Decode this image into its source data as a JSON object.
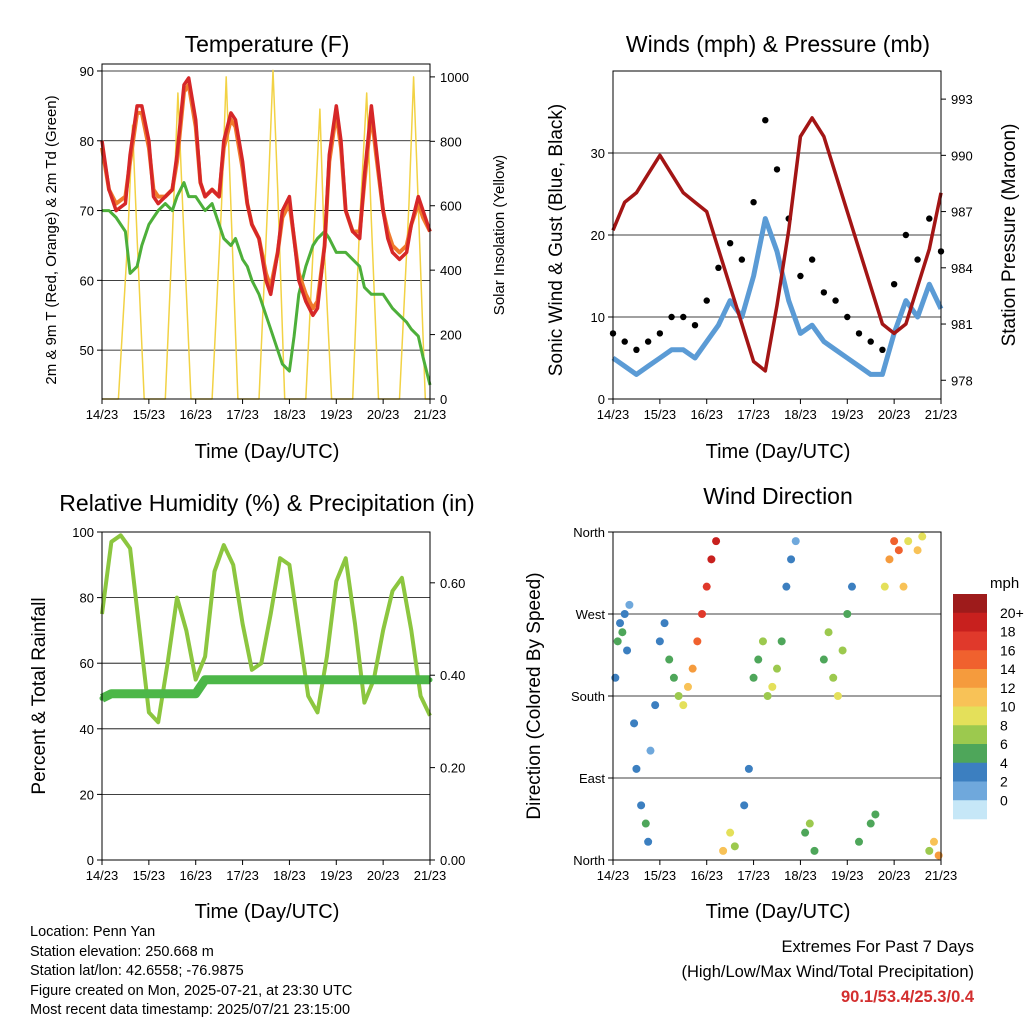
{
  "colors": {
    "t2m": "#d62728",
    "t9m": "#f07a2c",
    "td": "#4daf3a",
    "solar": "#f2d244",
    "wind": "#5b9bd5",
    "gust": "#000000",
    "pressure": "#a31515",
    "rh": "#8cc63f",
    "precip": "#4cb748",
    "extremes": "#d32f2f"
  },
  "x_ticks": [
    "14/23",
    "15/23",
    "16/23",
    "17/23",
    "18/23",
    "19/23",
    "20/23",
    "21/23"
  ],
  "panels": {
    "temperature": {
      "title": "Temperature (F)",
      "xlabel": "Time (Day/UTC)",
      "ylabel_left": "2m & 9m T (Red, Orange) & 2m Td (Green)",
      "ylabel_right": "Solar Insolation (Yellow)",
      "yticks_left": [
        "50",
        "60",
        "70",
        "80",
        "90"
      ],
      "yticks_right": [
        "0",
        "200",
        "400",
        "600",
        "800",
        "1000"
      ]
    },
    "winds": {
      "title": "Winds (mph) & Pressure (mb)",
      "xlabel": "Time (Day/UTC)",
      "ylabel_left": "Sonic Wind & Gust (Blue, Black)",
      "ylabel_right": "Station Pressure (Maroon)",
      "yticks_left": [
        "0",
        "10",
        "20",
        "30"
      ],
      "yticks_right": [
        "978",
        "981",
        "984",
        "987",
        "990",
        "993"
      ]
    },
    "humidity": {
      "title": "Relative Humidity (%) & Precipitation (in)",
      "xlabel": "Time (Day/UTC)",
      "ylabel_left": "Percent & Total Rainfall",
      "yticks_left": [
        "0",
        "20",
        "40",
        "60",
        "80",
        "100"
      ],
      "yticks_right": [
        "0.00",
        "0.20",
        "0.40",
        "0.60"
      ]
    },
    "direction": {
      "title": "Wind Direction",
      "xlabel": "Time (Day/UTC)",
      "ylabel_left": "Direction (Colored By Speed)",
      "yticks_left": [
        "North",
        "East",
        "South",
        "West",
        "North"
      ],
      "legend_title": "mph",
      "legend_labels": [
        "20+",
        "18",
        "16",
        "14",
        "12",
        "10",
        "8",
        "6",
        "4",
        "2",
        "0"
      ],
      "legend_colors": [
        "#9e1b1b",
        "#c8201e",
        "#e0392b",
        "#f0612e",
        "#f59b3d",
        "#f8c257",
        "#e4e05a",
        "#9cc94e",
        "#4ea65a",
        "#3c7fc0",
        "#6fa8dc",
        "#c6e7f7"
      ]
    }
  },
  "chart_data": [
    {
      "type": "line",
      "title": "Temperature (F)",
      "xlabel": "Time (Day/UTC)",
      "x": [
        0,
        0.15,
        0.3,
        0.5,
        0.6,
        0.75,
        0.85,
        1.0,
        1.1,
        1.2,
        1.35,
        1.5,
        1.6,
        1.75,
        1.85,
        2.0,
        2.1,
        2.2,
        2.35,
        2.5,
        2.6,
        2.75,
        2.85,
        3.0,
        3.1,
        3.2,
        3.35,
        3.5,
        3.6,
        3.75,
        3.85,
        4.0,
        4.1,
        4.2,
        4.35,
        4.5,
        4.6,
        4.75,
        4.85,
        5.0,
        5.1,
        5.2,
        5.35,
        5.5,
        5.6,
        5.75,
        5.85,
        6.0,
        6.1,
        6.2,
        6.35,
        6.5,
        6.6,
        6.75,
        6.85,
        7.0
      ],
      "series": [
        {
          "name": "2m T",
          "axis": "left",
          "ylim": [
            43,
            91
          ],
          "values": [
            80,
            73,
            70,
            71,
            78,
            85,
            85,
            80,
            72,
            71,
            72,
            73,
            78,
            88,
            89,
            83,
            74,
            72,
            73,
            72,
            80,
            84,
            83,
            77,
            71,
            68,
            66,
            60,
            58,
            64,
            70,
            72,
            66,
            60,
            57,
            55,
            56,
            65,
            78,
            85,
            80,
            70,
            67,
            66,
            75,
            85,
            79,
            70,
            66,
            64,
            63,
            64,
            68,
            72,
            70,
            67
          ]
        },
        {
          "name": "9m T",
          "axis": "left",
          "ylim": [
            43,
            91
          ],
          "values": [
            79,
            73,
            71,
            72,
            77,
            84,
            84,
            79,
            73,
            72,
            72,
            73,
            77,
            87,
            88,
            82,
            74,
            72,
            73,
            72,
            79,
            83,
            82,
            76,
            71,
            68,
            66,
            61,
            59,
            64,
            69,
            71,
            66,
            61,
            58,
            56,
            57,
            65,
            77,
            84,
            79,
            70,
            67,
            67,
            74,
            84,
            78,
            70,
            67,
            65,
            64,
            65,
            68,
            71,
            69,
            67
          ]
        },
        {
          "name": "2m Td",
          "axis": "left",
          "ylim": [
            43,
            91
          ],
          "values": [
            70,
            70,
            69,
            67,
            61,
            62,
            65,
            68,
            69,
            70,
            71,
            70,
            72,
            74,
            72,
            72,
            71,
            70,
            71,
            68,
            66,
            65,
            66,
            63,
            62,
            60,
            58,
            55,
            53,
            50,
            48,
            47,
            52,
            58,
            62,
            65,
            66,
            67,
            66,
            64,
            64,
            64,
            63,
            62,
            59,
            58,
            58,
            58,
            57,
            56,
            55,
            54,
            53,
            52,
            49,
            45
          ]
        },
        {
          "name": "Solar Insolation",
          "axis": "right",
          "ylim": [
            0,
            1040
          ],
          "x": [
            0,
            0.35,
            0.55,
            0.65,
            0.75,
            0.9,
            1.35,
            1.5,
            1.62,
            1.75,
            1.9,
            2.35,
            2.55,
            2.65,
            2.75,
            2.9,
            3.35,
            3.55,
            3.65,
            3.75,
            3.9,
            4.35,
            4.5,
            4.65,
            4.75,
            4.9,
            5.35,
            5.5,
            5.65,
            5.75,
            5.9,
            6.35,
            6.55,
            6.65,
            6.75,
            6.9,
            7.0
          ],
          "values": [
            0,
            0,
            500,
            850,
            500,
            0,
            0,
            500,
            950,
            500,
            0,
            0,
            600,
            1000,
            600,
            0,
            0,
            650,
            1020,
            650,
            0,
            0,
            450,
            900,
            450,
            0,
            0,
            550,
            950,
            550,
            0,
            0,
            600,
            1000,
            600,
            0,
            0
          ]
        }
      ]
    },
    {
      "type": "line",
      "title": "Winds (mph) & Pressure (mb)",
      "xlabel": "Time (Day/UTC)",
      "x": [
        0,
        0.25,
        0.5,
        0.75,
        1.0,
        1.25,
        1.5,
        1.75,
        2.0,
        2.25,
        2.5,
        2.75,
        3.0,
        3.25,
        3.5,
        3.75,
        4.0,
        4.25,
        4.5,
        4.75,
        5.0,
        5.25,
        5.5,
        5.75,
        6.0,
        6.25,
        6.5,
        6.75,
        7.0
      ],
      "series": [
        {
          "name": "Sonic Wind",
          "axis": "left",
          "ylim": [
            0,
            40
          ],
          "values": [
            5,
            4,
            3,
            4,
            5,
            6,
            6,
            5,
            7,
            9,
            12,
            10,
            15,
            22,
            18,
            12,
            8,
            9,
            7,
            6,
            5,
            4,
            3,
            3,
            8,
            12,
            10,
            14,
            11
          ]
        },
        {
          "name": "Gust",
          "axis": "left",
          "ylim": [
            0,
            40
          ],
          "values": [
            8,
            7,
            6,
            7,
            8,
            10,
            10,
            9,
            12,
            16,
            19,
            17,
            24,
            34,
            28,
            22,
            15,
            17,
            13,
            12,
            10,
            8,
            7,
            6,
            14,
            20,
            17,
            22,
            18
          ]
        },
        {
          "name": "Station Pressure",
          "axis": "right",
          "ylim": [
            977,
            994.5
          ],
          "values": [
            986,
            987.5,
            988,
            989,
            990,
            989,
            988,
            987.5,
            987,
            985,
            983,
            981,
            979,
            978.5,
            982,
            986,
            991,
            992,
            991,
            989,
            987,
            985,
            983,
            981,
            980.5,
            981,
            983,
            985,
            988
          ]
        }
      ]
    },
    {
      "type": "line",
      "title": "Relative Humidity (%) & Precipitation (in)",
      "xlabel": "Time (Day/UTC)",
      "x": [
        0,
        0.2,
        0.4,
        0.6,
        0.8,
        1.0,
        1.2,
        1.4,
        1.6,
        1.8,
        2.0,
        2.2,
        2.4,
        2.6,
        2.8,
        3.0,
        3.2,
        3.4,
        3.6,
        3.8,
        4.0,
        4.2,
        4.4,
        4.6,
        4.8,
        5.0,
        5.2,
        5.4,
        5.6,
        5.8,
        6.0,
        6.2,
        6.4,
        6.6,
        6.8,
        7.0
      ],
      "series": [
        {
          "name": "Relative Humidity",
          "axis": "left",
          "ylim": [
            0,
            100
          ],
          "values": [
            75,
            97,
            99,
            95,
            70,
            45,
            42,
            60,
            80,
            70,
            55,
            62,
            88,
            96,
            90,
            72,
            58,
            60,
            75,
            92,
            90,
            70,
            50,
            45,
            62,
            85,
            92,
            72,
            48,
            55,
            70,
            82,
            86,
            70,
            50,
            44
          ]
        },
        {
          "name": "Total Precipitation",
          "axis": "right",
          "ylim": [
            0,
            0.71
          ],
          "values": [
            0.35,
            0.36,
            0.36,
            0.36,
            0.36,
            0.36,
            0.36,
            0.36,
            0.36,
            0.36,
            0.36,
            0.39,
            0.39,
            0.39,
            0.39,
            0.39,
            0.39,
            0.39,
            0.39,
            0.39,
            0.39,
            0.39,
            0.39,
            0.39,
            0.39,
            0.39,
            0.39,
            0.39,
            0.39,
            0.39,
            0.39,
            0.39,
            0.39,
            0.39,
            0.39,
            0.39
          ]
        }
      ]
    },
    {
      "type": "scatter",
      "title": "Wind Direction",
      "xlabel": "Time (Day/UTC)",
      "ylabel": "Direction (Colored By Speed)",
      "ylim": [
        0,
        360
      ],
      "points": [
        [
          0.05,
          200,
          4
        ],
        [
          0.1,
          240,
          6
        ],
        [
          0.15,
          260,
          5
        ],
        [
          0.2,
          250,
          6
        ],
        [
          0.25,
          270,
          4
        ],
        [
          0.3,
          230,
          5
        ],
        [
          0.35,
          280,
          3
        ],
        [
          0.45,
          150,
          5
        ],
        [
          0.5,
          100,
          4
        ],
        [
          0.6,
          60,
          5
        ],
        [
          0.7,
          40,
          6
        ],
        [
          0.75,
          20,
          4
        ],
        [
          0.8,
          120,
          3
        ],
        [
          0.9,
          170,
          4
        ],
        [
          1.0,
          240,
          5
        ],
        [
          1.1,
          260,
          4
        ],
        [
          1.2,
          220,
          6
        ],
        [
          1.3,
          200,
          7
        ],
        [
          1.4,
          180,
          9
        ],
        [
          1.5,
          170,
          10
        ],
        [
          1.6,
          190,
          12
        ],
        [
          1.7,
          210,
          14
        ],
        [
          1.8,
          240,
          16
        ],
        [
          1.9,
          270,
          18
        ],
        [
          2.0,
          300,
          19
        ],
        [
          2.1,
          330,
          20
        ],
        [
          2.2,
          350,
          21
        ],
        [
          2.35,
          10,
          12
        ],
        [
          2.5,
          30,
          10
        ],
        [
          2.6,
          15,
          8
        ],
        [
          2.8,
          60,
          4
        ],
        [
          2.9,
          100,
          5
        ],
        [
          3.0,
          200,
          6
        ],
        [
          3.1,
          220,
          7
        ],
        [
          3.2,
          240,
          8
        ],
        [
          3.3,
          180,
          9
        ],
        [
          3.4,
          190,
          10
        ],
        [
          3.5,
          210,
          8
        ],
        [
          3.6,
          240,
          6
        ],
        [
          3.7,
          300,
          5
        ],
        [
          3.8,
          330,
          4
        ],
        [
          3.9,
          350,
          3
        ],
        [
          4.1,
          30,
          7
        ],
        [
          4.2,
          40,
          8
        ],
        [
          4.3,
          10,
          6
        ],
        [
          4.5,
          220,
          7
        ],
        [
          4.6,
          250,
          8
        ],
        [
          4.7,
          200,
          9
        ],
        [
          4.8,
          180,
          10
        ],
        [
          4.9,
          230,
          8
        ],
        [
          5.0,
          270,
          6
        ],
        [
          5.1,
          300,
          5
        ],
        [
          5.25,
          20,
          6
        ],
        [
          5.5,
          40,
          7
        ],
        [
          5.6,
          50,
          6
        ],
        [
          5.8,
          300,
          10
        ],
        [
          5.9,
          330,
          14
        ],
        [
          6.0,
          350,
          17
        ],
        [
          6.1,
          340,
          16
        ],
        [
          6.2,
          300,
          13
        ],
        [
          6.3,
          350,
          10
        ],
        [
          6.5,
          340,
          12
        ],
        [
          6.6,
          355,
          11
        ],
        [
          6.75,
          10,
          9
        ],
        [
          6.85,
          20,
          12
        ],
        [
          6.95,
          5,
          14
        ]
      ]
    }
  ],
  "info_left": [
    "Location: Penn Yan",
    "Station elevation: 250.668 m",
    "Station lat/lon: 42.6558; -76.9875",
    "Figure created on Mon, 2025-07-21, at 23:30 UTC",
    "Most recent data timestamp: 2025/07/21 23:15:00"
  ],
  "extremes": {
    "line1": "Extremes For Past 7 Days",
    "line2": "(High/Low/Max Wind/Total Precipitation)",
    "values": "90.1/53.4/25.3/0.4"
  }
}
